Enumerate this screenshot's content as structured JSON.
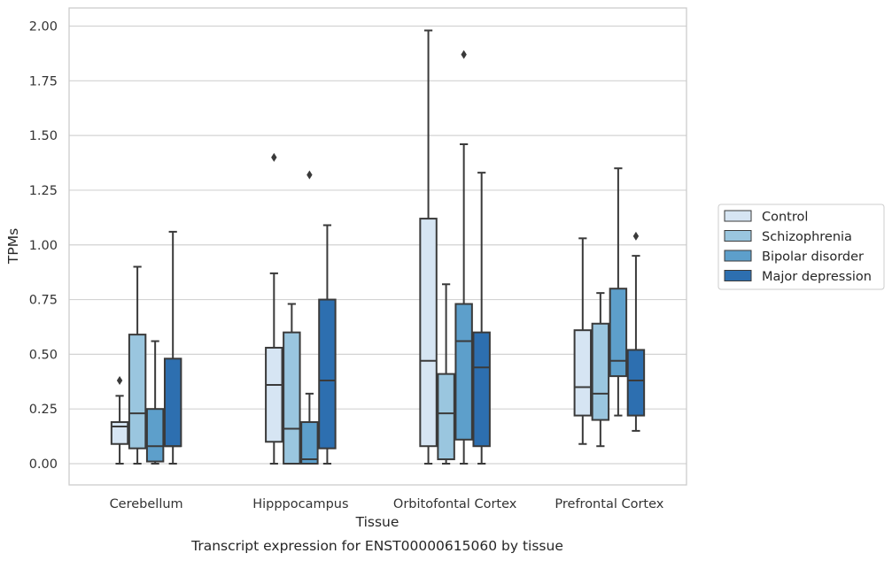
{
  "chart_data": {
    "type": "boxplot",
    "title": "Transcript expression for ENST00000615060 by tissue",
    "xlabel": "Tissue",
    "ylabel": "TPMs",
    "ylim": [
      -0.1,
      2.08
    ],
    "yticks": [
      "0.00",
      "0.25",
      "0.50",
      "0.75",
      "1.00",
      "1.25",
      "1.50",
      "1.75",
      "2.00"
    ],
    "grid": true,
    "legend_position": "right",
    "categories": [
      "Cerebellum",
      "Hipppocampus",
      "Orbitofontal Cortex",
      "Prefrontal Cortex"
    ],
    "series": [
      {
        "name": "Control",
        "color": "#d6e5f3",
        "boxes": [
          {
            "whisker_low": 0.0,
            "q1": 0.09,
            "median": 0.17,
            "q3": 0.19,
            "whisker_high": 0.31,
            "outliers": [
              0.38
            ]
          },
          {
            "whisker_low": 0.0,
            "q1": 0.1,
            "median": 0.36,
            "q3": 0.53,
            "whisker_high": 0.87,
            "outliers": [
              1.4
            ]
          },
          {
            "whisker_low": 0.0,
            "q1": 0.08,
            "median": 0.47,
            "q3": 1.12,
            "whisker_high": 1.98,
            "outliers": []
          },
          {
            "whisker_low": 0.09,
            "q1": 0.22,
            "median": 0.35,
            "q3": 0.61,
            "whisker_high": 1.03,
            "outliers": []
          }
        ]
      },
      {
        "name": "Schizophrenia",
        "color": "#9ac6df",
        "boxes": [
          {
            "whisker_low": 0.0,
            "q1": 0.07,
            "median": 0.23,
            "q3": 0.59,
            "whisker_high": 0.9,
            "outliers": []
          },
          {
            "whisker_low": 0.0,
            "q1": 0.0,
            "median": 0.16,
            "q3": 0.6,
            "whisker_high": 0.73,
            "outliers": []
          },
          {
            "whisker_low": 0.0,
            "q1": 0.02,
            "median": 0.23,
            "q3": 0.41,
            "whisker_high": 0.82,
            "outliers": []
          },
          {
            "whisker_low": 0.08,
            "q1": 0.2,
            "median": 0.32,
            "q3": 0.64,
            "whisker_high": 0.78,
            "outliers": []
          }
        ]
      },
      {
        "name": "Bipolar disorder",
        "color": "#5d9fcb",
        "boxes": [
          {
            "whisker_low": 0.0,
            "q1": 0.01,
            "median": 0.08,
            "q3": 0.25,
            "whisker_high": 0.56,
            "outliers": []
          },
          {
            "whisker_low": 0.0,
            "q1": 0.0,
            "median": 0.02,
            "q3": 0.19,
            "whisker_high": 0.32,
            "outliers": [
              1.32
            ]
          },
          {
            "whisker_low": 0.0,
            "q1": 0.11,
            "median": 0.56,
            "q3": 0.73,
            "whisker_high": 1.46,
            "outliers": [
              1.87
            ]
          },
          {
            "whisker_low": 0.22,
            "q1": 0.4,
            "median": 0.47,
            "q3": 0.8,
            "whisker_high": 1.35,
            "outliers": []
          }
        ]
      },
      {
        "name": "Major depression",
        "color": "#2d6fb0",
        "boxes": [
          {
            "whisker_low": 0.0,
            "q1": 0.08,
            "median": 0.08,
            "q3": 0.48,
            "whisker_high": 1.06,
            "outliers": []
          },
          {
            "whisker_low": 0.0,
            "q1": 0.07,
            "median": 0.38,
            "q3": 0.75,
            "whisker_high": 1.09,
            "outliers": []
          },
          {
            "whisker_low": 0.0,
            "q1": 0.08,
            "median": 0.44,
            "q3": 0.6,
            "whisker_high": 1.33,
            "outliers": []
          },
          {
            "whisker_low": 0.15,
            "q1": 0.22,
            "median": 0.38,
            "q3": 0.52,
            "whisker_high": 0.95,
            "outliers": [
              1.04
            ]
          }
        ]
      }
    ]
  }
}
